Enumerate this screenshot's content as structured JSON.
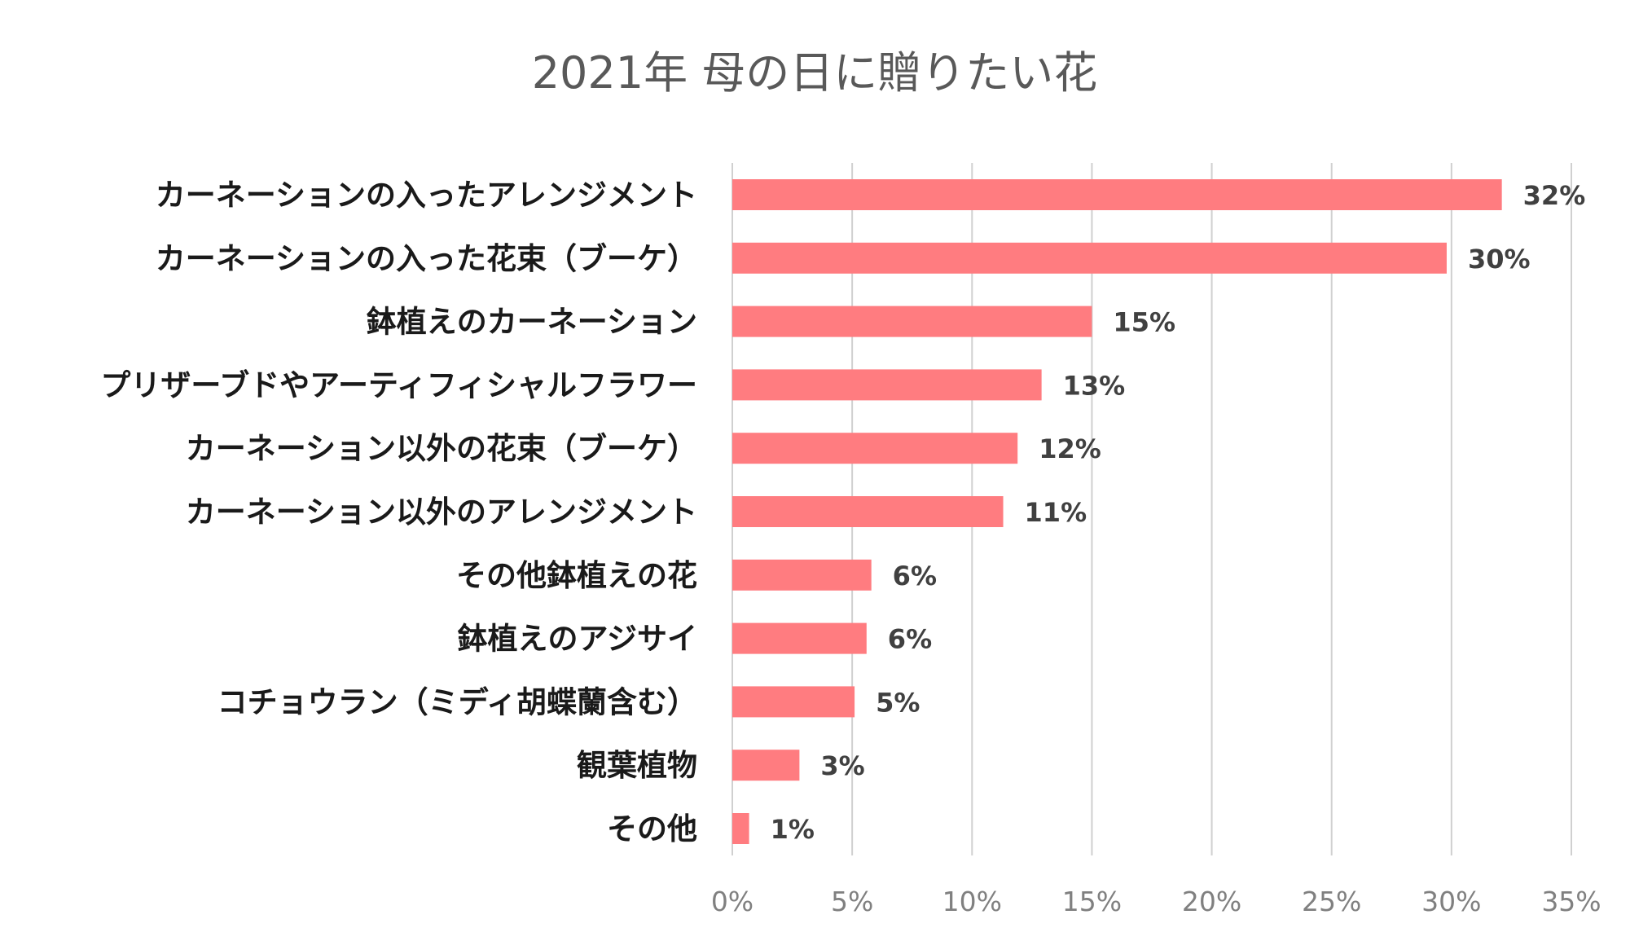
{
  "chart_data": {
    "type": "bar",
    "orientation": "horizontal",
    "title": "2021年 母の日に贈りたい花",
    "categories": [
      "カーネーションの入ったアレンジメント",
      "カーネーションの入った花束（ブーケ）",
      "鉢植えのカーネーション",
      "プリザーブドやアーティフィシャルフラワー",
      "カーネーション以外の花束（ブーケ）",
      "カーネーション以外のアレンジメント",
      "その他鉢植えの花",
      "鉢植えのアジサイ",
      "コチョウラン（ミディ胡蝶蘭含む）",
      "観葉植物",
      "その他"
    ],
    "values": [
      32.1,
      29.8,
      15.0,
      12.9,
      11.9,
      11.3,
      5.8,
      5.6,
      5.1,
      2.8,
      0.7
    ],
    "value_labels": [
      "32%",
      "30%",
      "15%",
      "13%",
      "12%",
      "11%",
      "6%",
      "6%",
      "5%",
      "3%",
      "1%"
    ],
    "xlim": [
      0,
      35
    ],
    "xticks": [
      0,
      5,
      10,
      15,
      20,
      25,
      30,
      35
    ],
    "xtick_labels": [
      "0%",
      "5%",
      "10%",
      "15%",
      "20%",
      "25%",
      "30%",
      "35%"
    ],
    "xlabel": "",
    "ylabel": "",
    "grid": true,
    "legend": "none",
    "bar_color": "#ff7c80"
  }
}
